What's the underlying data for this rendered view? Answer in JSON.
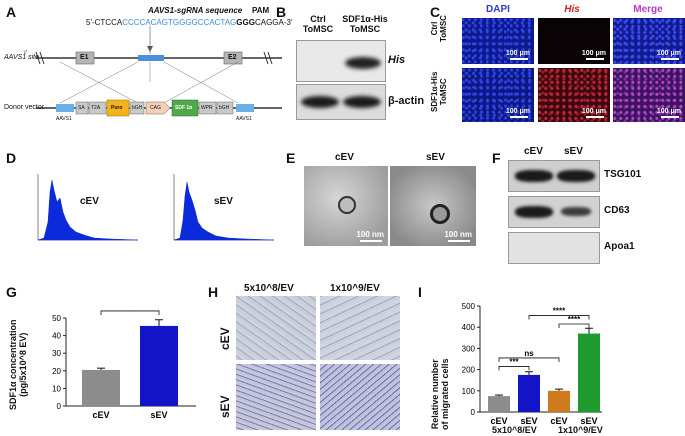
{
  "panels": {
    "A": {
      "label": "A",
      "sgrna_title": "AAVS1-sgRNA sequence",
      "pam": "PAM",
      "seq_prefix": "5'-CTCCA",
      "seq_blue": "CCCCACAGTGGGGCCACTAG",
      "seq_bold": "GGG",
      "seq_suffix": "CAGGA-3'",
      "site_label": "AAVS1 site",
      "e1": "E1",
      "e2": "E2",
      "donor_label": "Donor vector",
      "aavs1_left": "AAVS1",
      "aavs1_right": "AAVS1",
      "segments": [
        "SA",
        "T2A",
        "Puro",
        "bGH",
        "CAG",
        "SDF 1α",
        "WPR",
        "bGH"
      ]
    },
    "B": {
      "label": "B",
      "col1_line1": "Ctrl",
      "col1_line2": "ToMSC",
      "col2_line1": "SDF1α-His",
      "col2_line2": "ToMSC",
      "row1": "His",
      "row2": "β-actin"
    },
    "C": {
      "label": "C",
      "col_dapi": "DAPI",
      "col_his": "His",
      "col_merge": "Merge",
      "row1_line1": "Ctrl",
      "row1_line2": "ToMSC",
      "row2_line1": "SDF1α-His",
      "row2_line2": "ToMSC",
      "scale": "100 μm",
      "colors": {
        "dapi": "#1f35c8",
        "his": "#c8232f",
        "merge": "#b43aa8"
      }
    },
    "D": {
      "label": "D",
      "hist1": "cEV",
      "hist2": "sEV"
    },
    "E": {
      "label": "E",
      "col1": "cEV",
      "col2": "sEV",
      "scale": "100 nm"
    },
    "F": {
      "label": "F",
      "col1": "cEV",
      "col2": "sEV",
      "row1": "TSG101",
      "row2": "CD63",
      "row3": "Apoa1"
    },
    "G": {
      "label": "G",
      "ylabel_line1": "SDF1α concentration",
      "ylabel_line2": "(pg/5x10^8 EV)",
      "sig": "***"
    },
    "H": {
      "label": "H",
      "col1": "5x10^8/EV",
      "col2": "1x10^9/EV",
      "row1": "cEV",
      "row2": "sEV"
    },
    "I": {
      "label": "I",
      "ylabel_line1": "Relative number",
      "ylabel_line2": "of migrated cells",
      "group1": "5x10^8/EV",
      "group2": "1x10^9/EV",
      "sig_a": "***",
      "sig_b": "ns",
      "sig_c": "****",
      "sig_d": "****"
    }
  },
  "chart_data": [
    {
      "type": "bar",
      "panel": "G",
      "categories": [
        "cEV",
        "sEV"
      ],
      "values": [
        20.5,
        45.5
      ],
      "errors": [
        1.0,
        3.5
      ],
      "colors": [
        "#8c8c8c",
        "#1414c8"
      ],
      "ylabel": "SDF1α concentration (pg/5x10^8 EV)",
      "ylim": [
        0,
        50
      ],
      "yticks": [
        0,
        10,
        20,
        30,
        40,
        50
      ]
    },
    {
      "type": "bar",
      "panel": "I",
      "categories": [
        "cEV",
        "sEV",
        "cEV",
        "sEV"
      ],
      "groups": [
        "5x10^8/EV",
        "5x10^8/EV",
        "1x10^9/EV",
        "1x10^9/EV"
      ],
      "values": [
        75,
        175,
        100,
        370
      ],
      "errors": [
        5,
        15,
        8,
        25
      ],
      "colors": [
        "#8c8c8c",
        "#1414c8",
        "#d07a1e",
        "#1f9a2e"
      ],
      "ylabel": "Relative number of migrated cells",
      "ylim": [
        0,
        500
      ],
      "yticks": [
        0,
        100,
        200,
        300,
        400,
        500
      ]
    }
  ]
}
